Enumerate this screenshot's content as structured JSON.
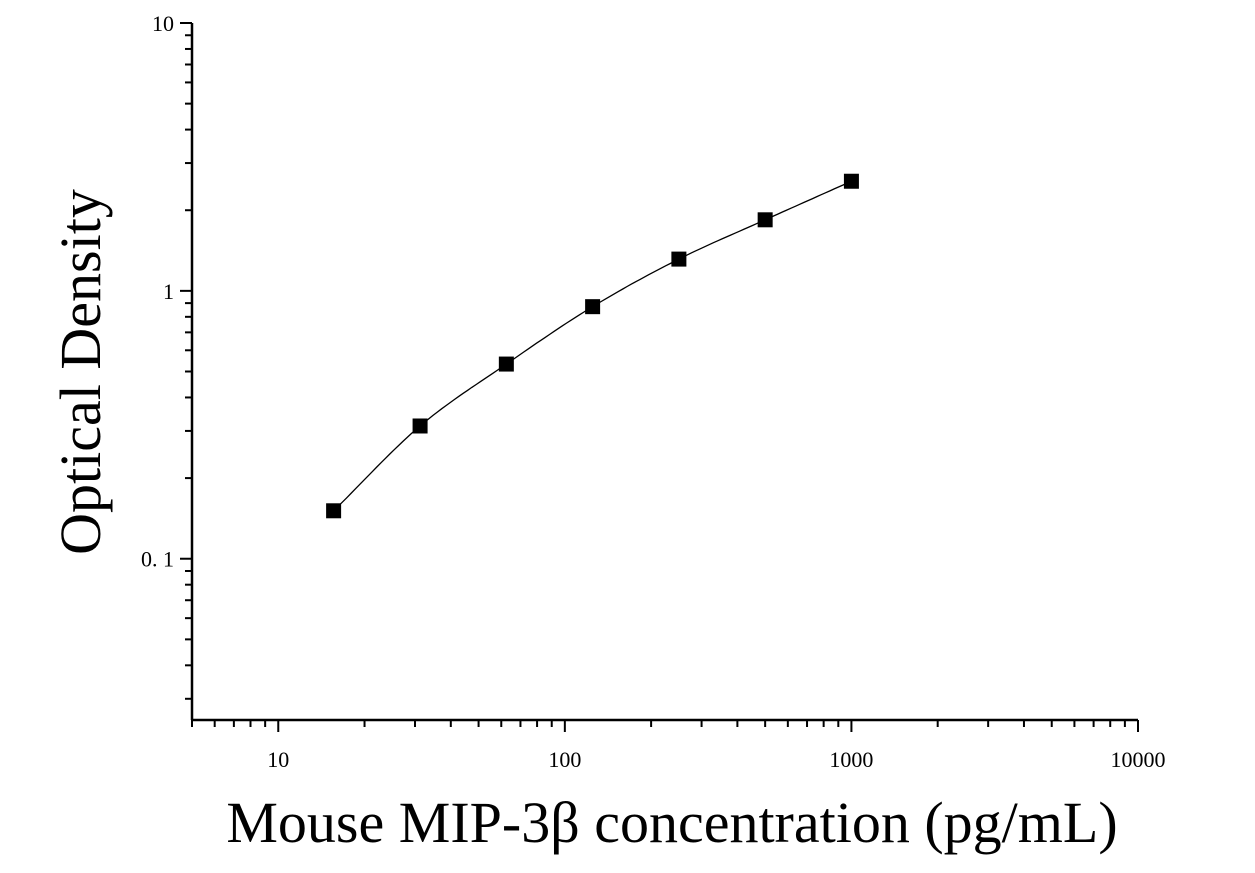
{
  "chart_data": {
    "type": "scatter",
    "title": "",
    "xlabel": "Mouse MIP-3β concentration (pg/mL)",
    "ylabel": "Optical Density",
    "xscale": "log",
    "yscale": "log",
    "xlim": [
      5,
      10000
    ],
    "ylim": [
      0.025,
      10
    ],
    "x_ticks": [
      {
        "value": 10,
        "label": "10"
      },
      {
        "value": 100,
        "label": "100"
      },
      {
        "value": 1000,
        "label": "1000"
      },
      {
        "value": 10000,
        "label": "10000"
      }
    ],
    "y_ticks": [
      {
        "value": 0.1,
        "label": "0. 1"
      },
      {
        "value": 1,
        "label": "1"
      },
      {
        "value": 10,
        "label": "10"
      }
    ],
    "grid": false,
    "legend": "none",
    "marker": "filled-square",
    "series": [
      {
        "x": [
          15.6,
          31.25,
          62.5,
          125,
          250,
          500,
          1000
        ],
        "y": [
          0.151,
          0.313,
          0.533,
          0.873,
          1.314,
          1.842,
          2.566
        ],
        "fit_curve": true
      }
    ],
    "colors": {
      "marker": "#000000",
      "line": "#000000",
      "axis": "#000000"
    }
  }
}
